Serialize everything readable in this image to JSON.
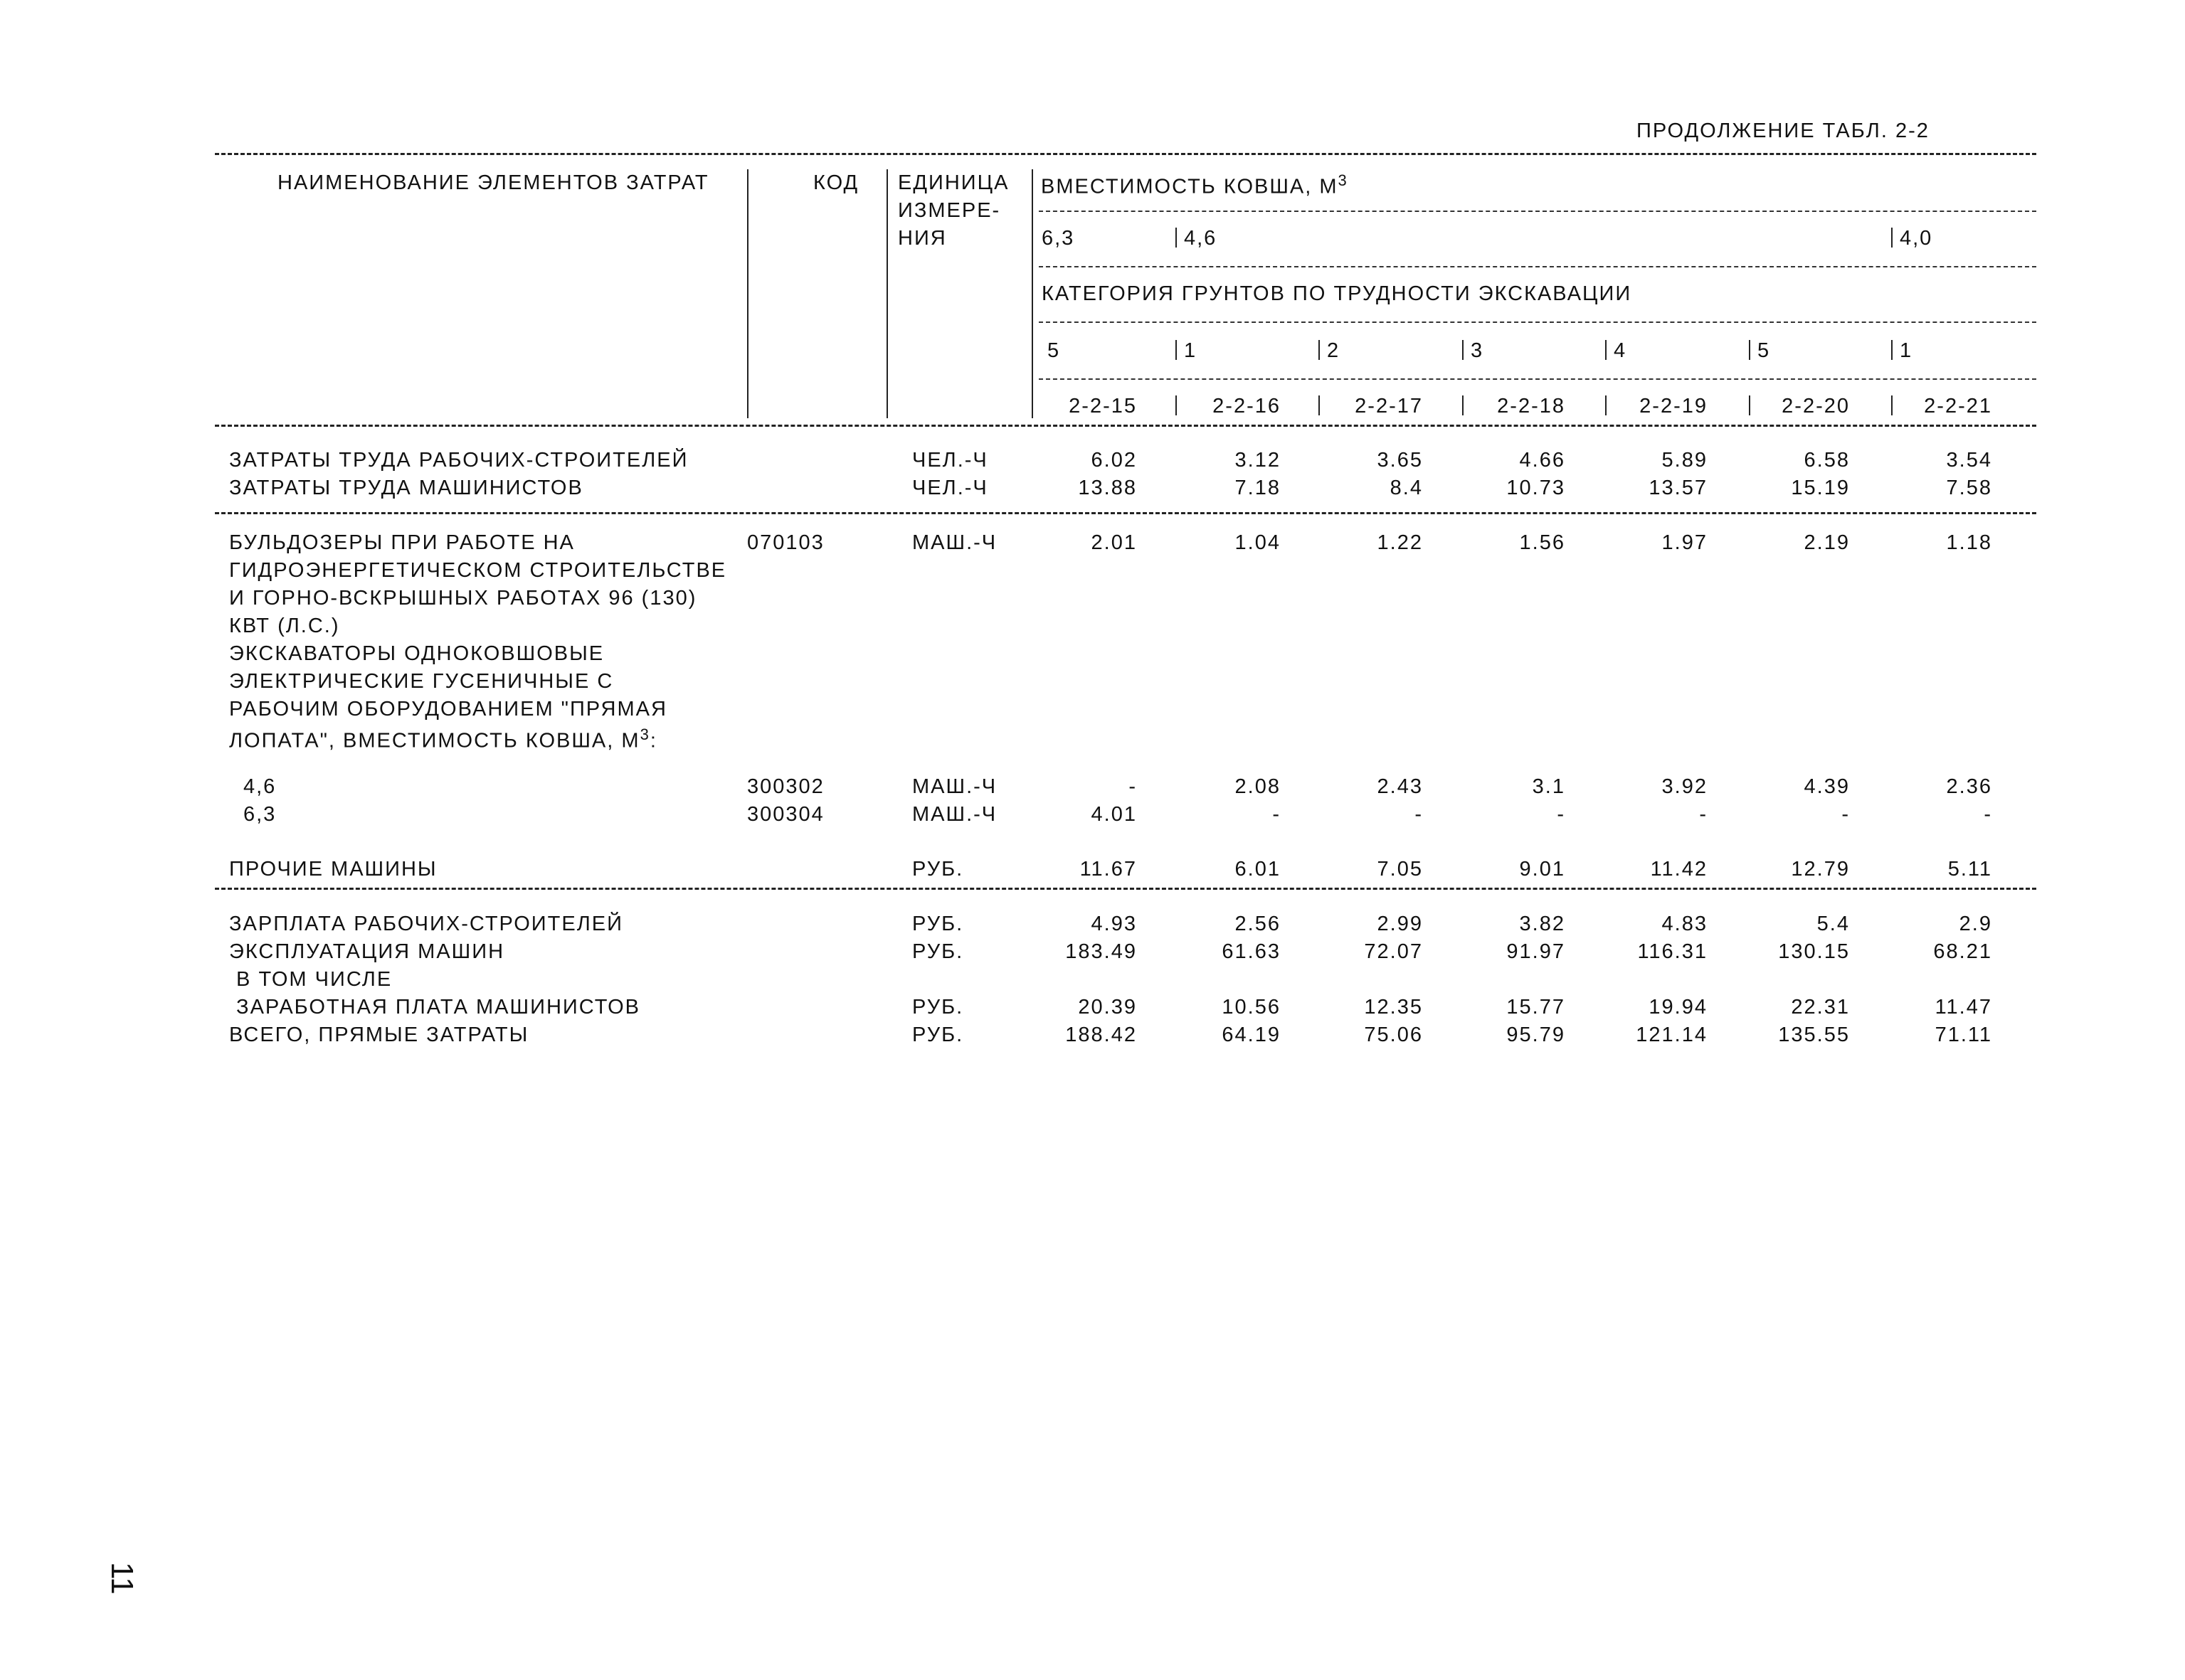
{
  "continuation": "ПРОДОЛЖЕНИЕ ТАБЛ. 2-2",
  "header": {
    "name_col": "НАИМЕНОВАНИЕ ЭЛЕМЕНТОВ ЗАТРАТ",
    "code_col": "КОД",
    "unit_col": [
      "ЕДИНИЦА",
      "ИЗМЕРЕ-",
      "НИЯ"
    ],
    "capacity_label": "ВМЕСТИМОСТЬ КОВША, М",
    "capacity_sup": "3",
    "capacities": [
      "6,3",
      "4,6",
      "4,0"
    ],
    "category_label": "КАТЕГОРИЯ ГРУНТОВ ПО ТРУДНОСТИ ЭКСКАВАЦИИ",
    "categories": [
      "5",
      "1",
      "2",
      "3",
      "4",
      "5",
      "1"
    ],
    "codes": [
      "2-2-15",
      "2-2-16",
      "2-2-17",
      "2-2-18",
      "2-2-19",
      "2-2-20",
      "2-2-21"
    ]
  },
  "labor": [
    {
      "name": "ЗАТРАТЫ ТРУДА РАБОЧИХ-СТРОИТЕЛЕЙ",
      "unit": "ЧЕЛ.-Ч",
      "values": [
        "6.02",
        "3.12",
        "3.65",
        "4.66",
        "5.89",
        "6.58",
        "3.54"
      ]
    },
    {
      "name": "ЗАТРАТЫ ТРУДА МАШИНИСТОВ",
      "unit": "ЧЕЛ.-Ч",
      "values": [
        "13.88",
        "7.18",
        "8.4",
        "10.73",
        "13.57",
        "15.19",
        "7.58"
      ]
    }
  ],
  "bulldozer": {
    "lines": [
      "БУЛЬДОЗЕРЫ ПРИ РАБОТЕ НА",
      "ГИДРОЭНЕРГЕТИЧЕСКОМ СТРОИТЕЛЬСТВЕ",
      "И ГОРНО-ВСКРЫШНЫХ РАБОТАХ 96 (130)",
      "КВТ (Л.С.)"
    ],
    "code": "070103",
    "unit": "МАШ.-Ч",
    "values": [
      "2.01",
      "1.04",
      "1.22",
      "1.56",
      "1.97",
      "2.19",
      "1.18"
    ]
  },
  "excavator_lines": [
    "ЭКСКАВАТОРЫ ОДНОКОВШОВЫЕ",
    "ЭЛЕКТРИЧЕСКИЕ ГУСЕНИЧНЫЕ С",
    "РАБОЧИМ ОБОРУДОВАНИЕМ \"ПРЯМАЯ",
    "ЛОПАТА\", ВМЕСТИМОСТЬ КОВША, М"
  ],
  "excavator_sup": "3",
  "excavator_colon": ":",
  "excavators": [
    {
      "name": "4,6",
      "code": "300302",
      "unit": "МАШ.-Ч",
      "values": [
        "-",
        "2.08",
        "2.43",
        "3.1",
        "3.92",
        "4.39",
        "2.36"
      ]
    },
    {
      "name": "6,3",
      "code": "300304",
      "unit": "МАШ.-Ч",
      "values": [
        "4.01",
        "-",
        "-",
        "-",
        "-",
        "-",
        "-"
      ]
    }
  ],
  "other_machines": {
    "name": "ПРОЧИЕ МАШИНЫ",
    "unit": "РУБ.",
    "values": [
      "11.67",
      "6.01",
      "7.05",
      "9.01",
      "11.42",
      "12.79",
      "5.11"
    ]
  },
  "costs": [
    {
      "name": "ЗАРПЛАТА РАБОЧИХ-СТРОИТЕЛЕЙ",
      "unit": "РУБ.",
      "values": [
        "4.93",
        "2.56",
        "2.99",
        "3.82",
        "4.83",
        "5.4",
        "2.9"
      ]
    },
    {
      "name": "ЭКСПЛУАТАЦИЯ МАШИН",
      "unit": "РУБ.",
      "values": [
        "183.49",
        "61.63",
        "72.07",
        "91.97",
        "116.31",
        "130.15",
        "68.21"
      ]
    },
    {
      "name": " В ТОМ ЧИСЛЕ",
      "unit": "",
      "values": [
        "",
        "",
        "",
        "",
        "",
        "",
        ""
      ]
    },
    {
      "name": " ЗАРАБОТНАЯ ПЛАТА МАШИНИСТОВ",
      "unit": "РУБ.",
      "values": [
        "20.39",
        "10.56",
        "12.35",
        "15.77",
        "19.94",
        "22.31",
        "11.47"
      ]
    },
    {
      "name": "ВСЕГО, ПРЯМЫЕ ЗАТРАТЫ",
      "unit": "РУБ.",
      "values": [
        "188.42",
        "64.19",
        "75.06",
        "95.79",
        "121.14",
        "135.55",
        "71.11"
      ]
    }
  ],
  "page_number": "11"
}
